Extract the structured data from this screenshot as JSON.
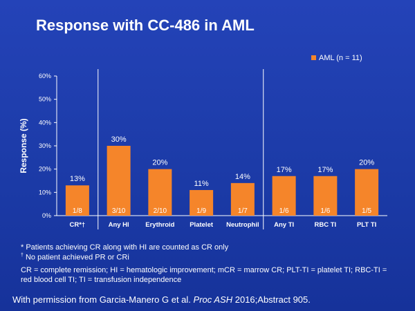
{
  "title": "Response with CC-486 in AML",
  "chart_data": {
    "type": "bar",
    "categories": [
      "CR*†",
      "Any HI",
      "Erythroid",
      "Platelet",
      "Neutrophil",
      "Any TI",
      "RBC TI",
      "PLT TI"
    ],
    "series": [
      {
        "name": "AML (n = 11)",
        "values": [
          13,
          30,
          20,
          11,
          14,
          17,
          17,
          20
        ],
        "value_labels": [
          "13%",
          "30%",
          "20%",
          "11%",
          "14%",
          "17%",
          "17%",
          "20%"
        ],
        "fractions": [
          "1/8",
          "3/10",
          "2/10",
          "1/9",
          "1/7",
          "1/6",
          "1/6",
          "1/5"
        ]
      }
    ],
    "ylabel": "Response (%)",
    "ylim": [
      0,
      60
    ],
    "yticks": [
      "0%",
      "10%",
      "20%",
      "30%",
      "40%",
      "50%",
      "60%"
    ],
    "grid": false,
    "legend": "top-right",
    "colors": {
      "bar": "#f5852a",
      "background": "#1d3da8",
      "text": "#ffffff"
    }
  },
  "footnotes": {
    "cr_note": "* Patients achieving CR along with HI are counted as CR only",
    "cr_dagger_symbol": "†",
    "cr_dagger_text": " No patient achieved PR or CRi",
    "abbreviations": "CR = complete remission; HI = hematologic improvement; mCR = marrow CR; PLT-TI = platelet TI; RBC-TI = red blood cell TI; TI = transfusion independence"
  },
  "credit": {
    "prefix": "With permission from Garcia-Manero G et al. ",
    "journal": "Proc ASH",
    "suffix": " 2016;Abstract 905."
  }
}
